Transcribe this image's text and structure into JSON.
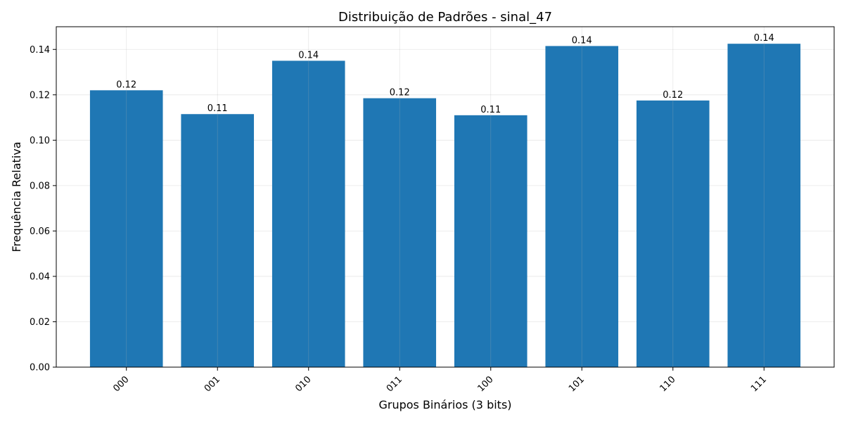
{
  "chart_data": {
    "type": "bar",
    "title": "Distribuição de Padrões - sinal_47",
    "xlabel": "Grupos Binários (3 bits)",
    "ylabel": "Frequência Relativa",
    "categories": [
      "000",
      "001",
      "010",
      "011",
      "100",
      "101",
      "110",
      "111"
    ],
    "values": [
      0.122,
      0.1115,
      0.135,
      0.1185,
      0.111,
      0.1415,
      0.1175,
      0.1425
    ],
    "data_labels": [
      "0.12",
      "0.11",
      "0.14",
      "0.12",
      "0.11",
      "0.14",
      "0.12",
      "0.14"
    ],
    "ylim": [
      0,
      0.15
    ],
    "yticks": [
      0.0,
      0.02,
      0.04,
      0.06,
      0.08,
      0.1,
      0.12,
      0.14
    ],
    "ytick_labels": [
      "0.00",
      "0.02",
      "0.04",
      "0.06",
      "0.08",
      "0.10",
      "0.12",
      "0.14"
    ],
    "bar_color": "#1f77b4",
    "grid": true,
    "xtick_rotation_deg": 45
  }
}
